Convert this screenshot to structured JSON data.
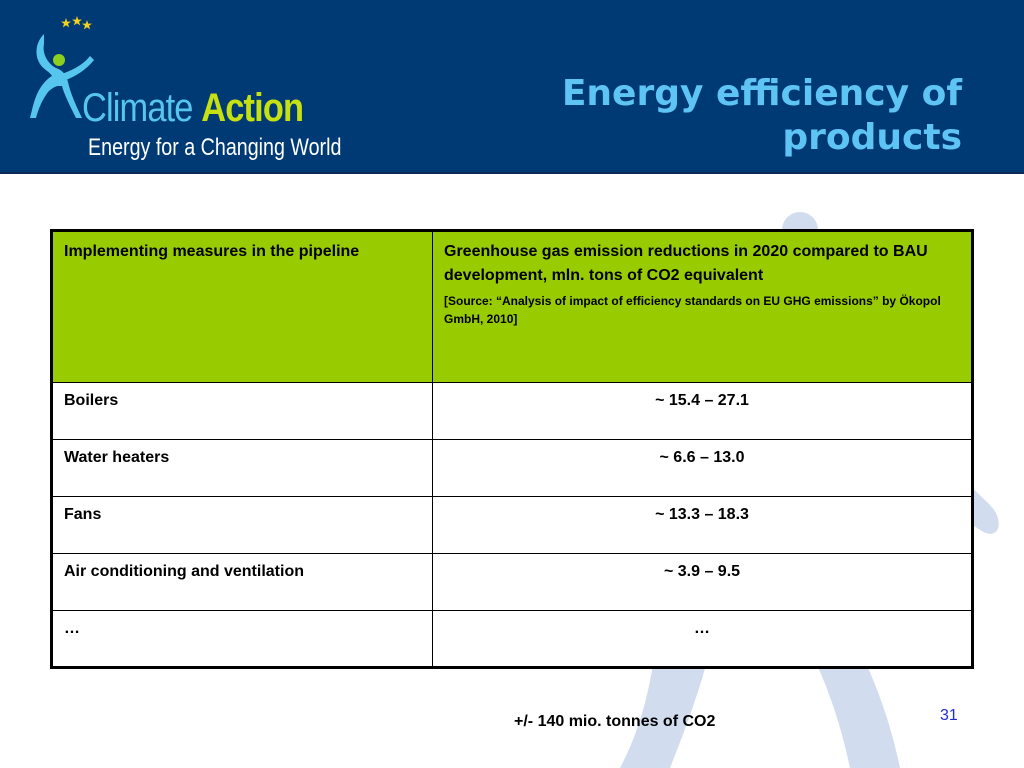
{
  "header": {
    "brand_word1": "Climate",
    "brand_word2": "Action",
    "tagline": "Energy for a Changing World",
    "title": "Energy efficiency of products",
    "colors": {
      "background": "#003a75",
      "title": "#5ec4f4",
      "brand_light_blue": "#56c6ee",
      "brand_green": "#c6e012",
      "stars": "#f2d21a"
    },
    "logo_icon": "climate-action-figure-logo"
  },
  "table": {
    "header_color": "#99cc00",
    "col1_header": "Implementing measures in the pipeline",
    "col2_header": "Greenhouse gas emission reductions in 2020 compared to BAU development, mln. tons of CO2 equivalent",
    "col2_source": "[Source: “Analysis of impact of efficiency standards on EU GHG emissions” by Ökopol GmbH, 2010]",
    "rows": [
      {
        "measure": "Boilers",
        "value": "~ 15.4 – 27.1"
      },
      {
        "measure": "Water heaters",
        "value": "~ 6.6 – 13.0"
      },
      {
        "measure": "Fans",
        "value": "~ 13.3 – 18.3"
      },
      {
        "measure": "Air conditioning and ventilation",
        "value": "~ 3.9 – 9.5"
      },
      {
        "measure": "…",
        "value": "…"
      }
    ]
  },
  "footer": {
    "total_note": "+/- 140 mio. tonnes of CO2",
    "page_number": "31",
    "page_number_color": "#1f2fd0"
  }
}
